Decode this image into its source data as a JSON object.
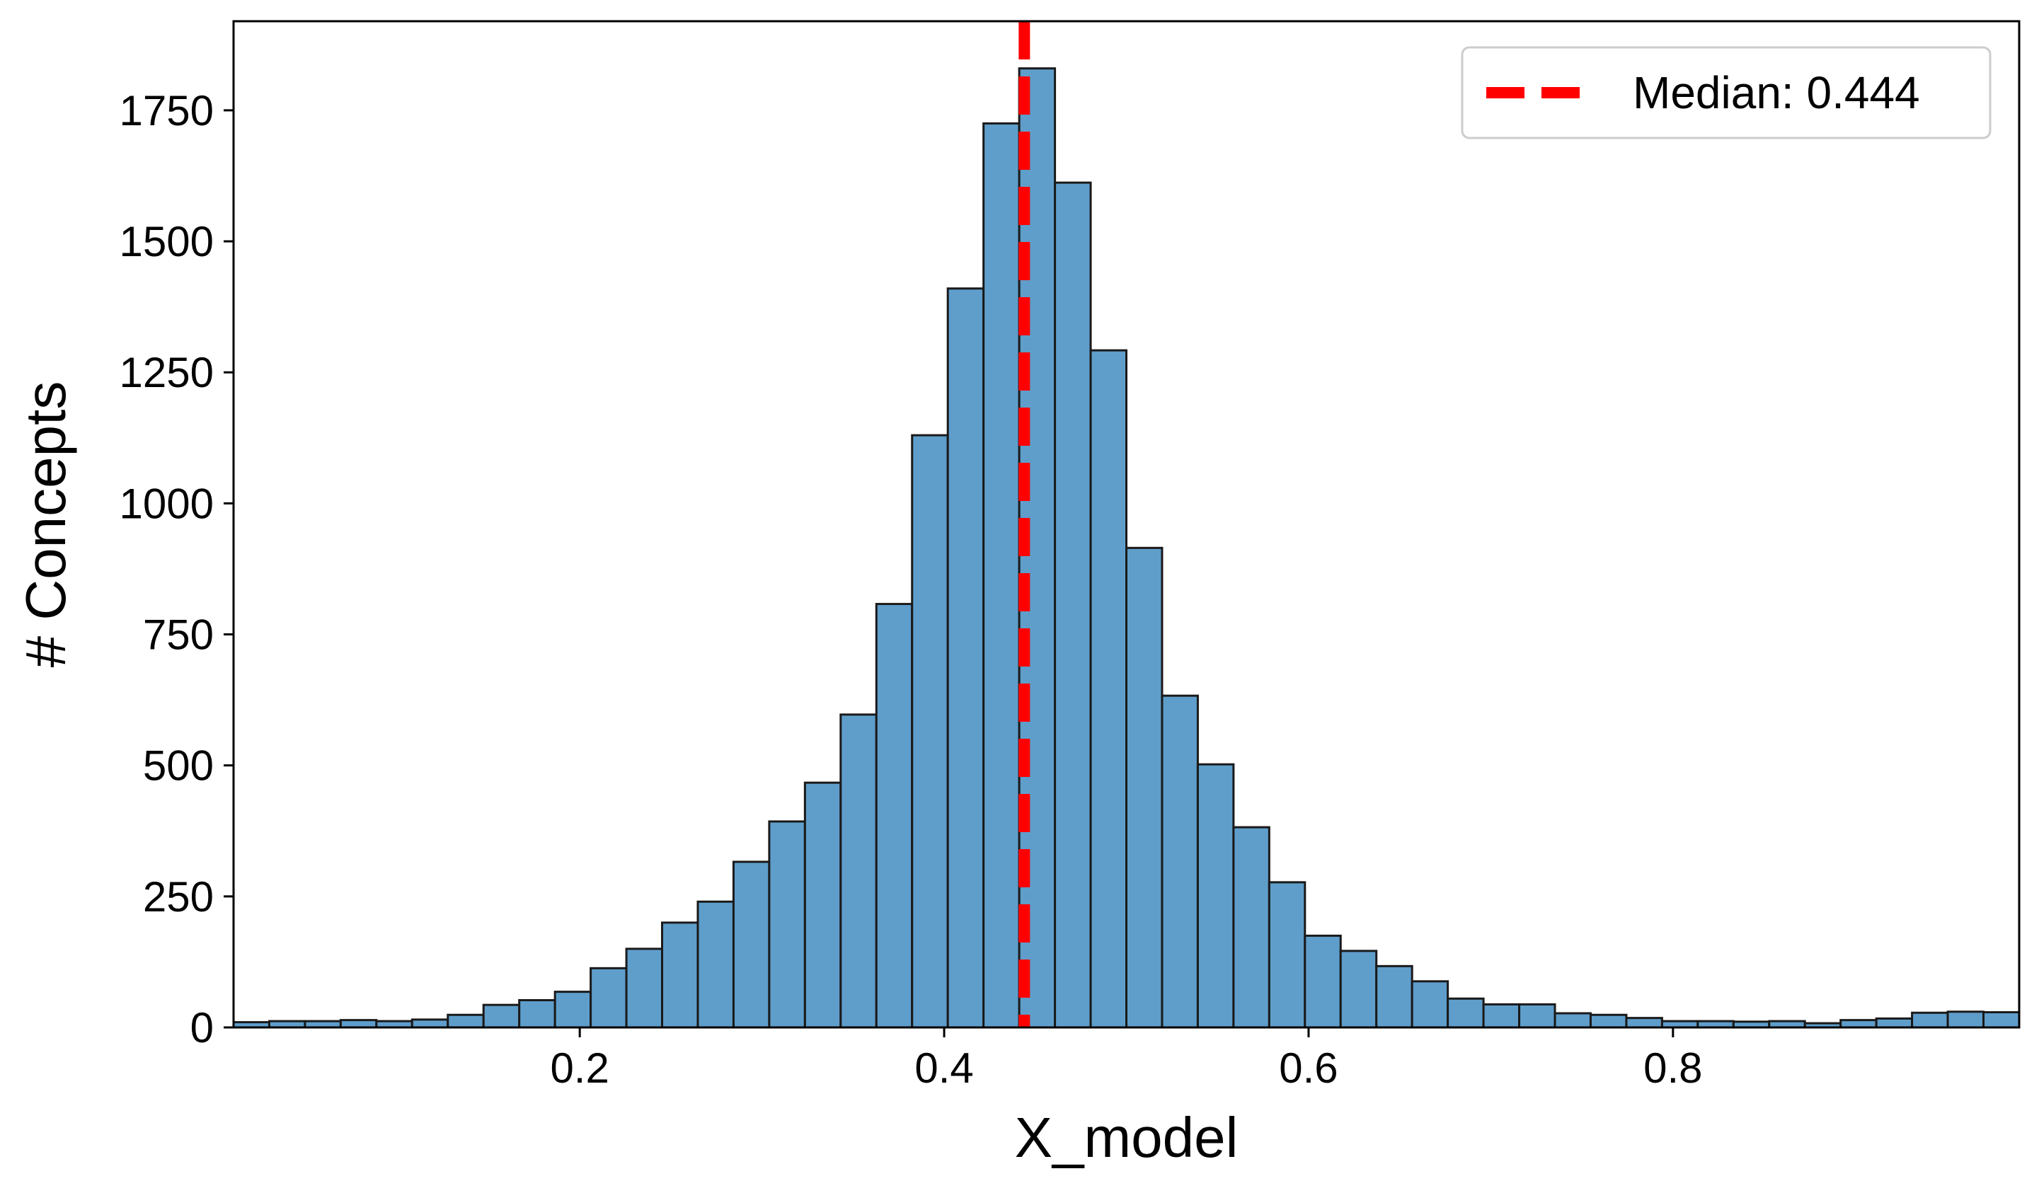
{
  "colors": {
    "bar_fill": "#5f9ecb",
    "bar_edge": "#1a1a1a",
    "median_line": "#ff0000",
    "axes": "#000000",
    "legend_border": "#cccccc"
  },
  "chart_data": {
    "type": "bar",
    "subtype": "histogram",
    "title": "",
    "xlabel": "X_model",
    "ylabel": "# Concepts",
    "xlim": [
      0.01,
      0.99
    ],
    "ylim": [
      0,
      1920
    ],
    "bin_width": 0.0196,
    "bin_start": 0.01,
    "grid": false,
    "legend_position": "top-right",
    "x_ticks": [
      {
        "value": 0.2,
        "label": "0.2"
      },
      {
        "value": 0.4,
        "label": "0.4"
      },
      {
        "value": 0.6,
        "label": "0.6"
      },
      {
        "value": 0.8,
        "label": "0.8"
      }
    ],
    "y_ticks": [
      {
        "value": 0,
        "label": "0"
      },
      {
        "value": 250,
        "label": "250"
      },
      {
        "value": 500,
        "label": "500"
      },
      {
        "value": 750,
        "label": "750"
      },
      {
        "value": 1000,
        "label": "1000"
      },
      {
        "value": 1250,
        "label": "1250"
      },
      {
        "value": 1500,
        "label": "1500"
      },
      {
        "value": 1750,
        "label": "1750"
      }
    ],
    "values": [
      10,
      12,
      12,
      14,
      12,
      15,
      24,
      43,
      52,
      68,
      113,
      150,
      200,
      240,
      316,
      393,
      467,
      597,
      808,
      1130,
      1410,
      1725,
      1830,
      1612,
      1292,
      915,
      633,
      502,
      382,
      277,
      175,
      146,
      117,
      88,
      55,
      44,
      44,
      27,
      24,
      18,
      12,
      12,
      11,
      12,
      8,
      14,
      17,
      28,
      30,
      29
    ],
    "reference_line": {
      "label": "Median: 0.444",
      "value": 0.444,
      "style": "dashed"
    }
  }
}
